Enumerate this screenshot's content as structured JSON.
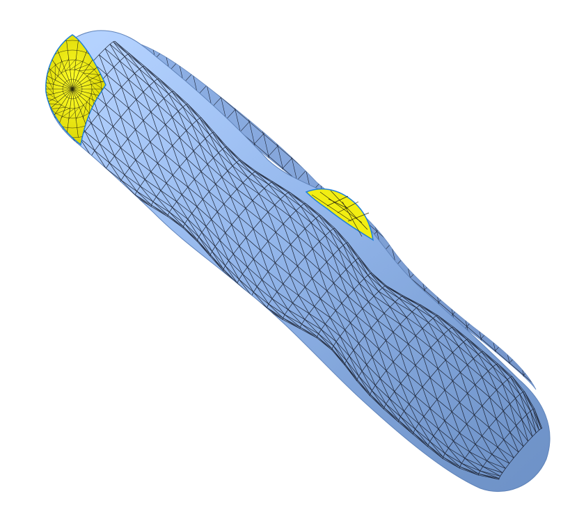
{
  "scene": {
    "object": "triangulated-tube-mesh",
    "colors": {
      "background": "#ffffff",
      "surface_light": "#a9ccff",
      "surface_mid": "#8fb4ea",
      "surface_dark": "#6f93c8",
      "wireframe": "#1b2130",
      "selected_patch": "#f5f50a",
      "selected_patch_dark": "#d7d400",
      "patch_boundary": "#1f7fd8"
    },
    "highlighted_patches": [
      {
        "name": "end-cap-patch",
        "color": "#f5f50a"
      },
      {
        "name": "mid-patch",
        "color": "#f5f50a"
      }
    ]
  }
}
